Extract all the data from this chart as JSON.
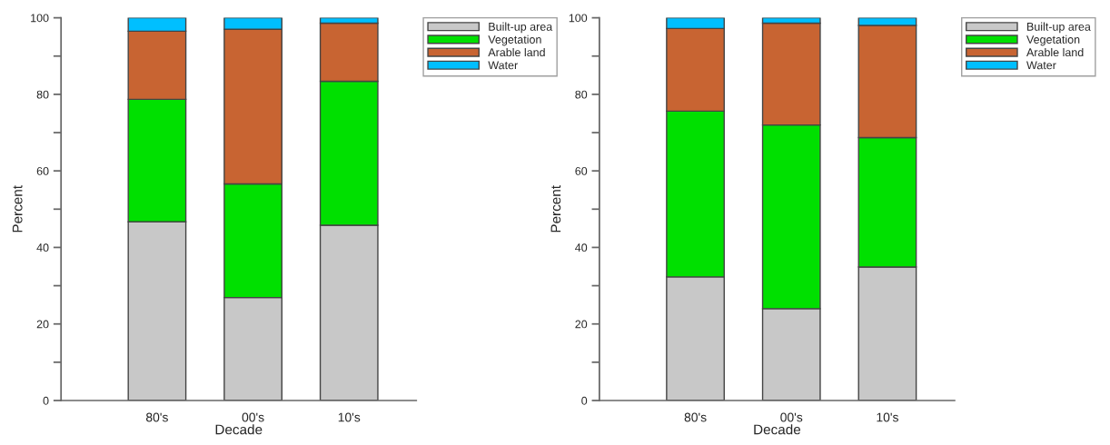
{
  "chart_data": [
    {
      "type": "bar",
      "stacked": true,
      "xlabel": "Decade",
      "ylabel": "Percent",
      "categories": [
        "80's",
        "00's",
        "10's"
      ],
      "ylim": [
        0,
        100
      ],
      "yticks": [
        0,
        {
          "value": 10,
          "label": null
        },
        20,
        {
          "value": 30,
          "label": null
        },
        40,
        {
          "value": 50,
          "label": null
        },
        60,
        {
          "value": 70,
          "label": null
        },
        80,
        {
          "value": 90,
          "label": null
        },
        100
      ],
      "legend": "top right",
      "grid": false,
      "series": [
        {
          "name": "Built-up area",
          "color": "#c8c8c8",
          "values": [
            46.7,
            26.9,
            45.8
          ]
        },
        {
          "name": "Vegetation",
          "color": "#00e000",
          "values": [
            32.0,
            29.7,
            37.6
          ]
        },
        {
          "name": "Arable land",
          "color": "#c86432",
          "values": [
            17.8,
            40.4,
            15.2
          ]
        },
        {
          "name": "Water",
          "color": "#00bfff",
          "values": [
            3.5,
            3.0,
            1.4
          ]
        }
      ]
    },
    {
      "type": "bar",
      "stacked": true,
      "xlabel": "Decade",
      "ylabel": "Percent",
      "categories": [
        "80's",
        "00's",
        "10's"
      ],
      "ylim": [
        0,
        100
      ],
      "yticks": [
        0,
        {
          "value": 10,
          "label": null
        },
        20,
        {
          "value": 30,
          "label": null
        },
        40,
        {
          "value": 50,
          "label": null
        },
        60,
        {
          "value": 70,
          "label": null
        },
        80,
        {
          "value": 90,
          "label": null
        },
        100
      ],
      "legend": "top right",
      "grid": false,
      "series": [
        {
          "name": "Built-up area",
          "color": "#c8c8c8",
          "values": [
            32.3,
            24.0,
            34.9
          ]
        },
        {
          "name": "Vegetation",
          "color": "#00e000",
          "values": [
            43.3,
            48.0,
            33.8
          ]
        },
        {
          "name": "Arable land",
          "color": "#c86432",
          "values": [
            21.6,
            26.6,
            29.3
          ]
        },
        {
          "name": "Water",
          "color": "#00bfff",
          "values": [
            2.8,
            1.4,
            2.0
          ]
        }
      ]
    }
  ]
}
